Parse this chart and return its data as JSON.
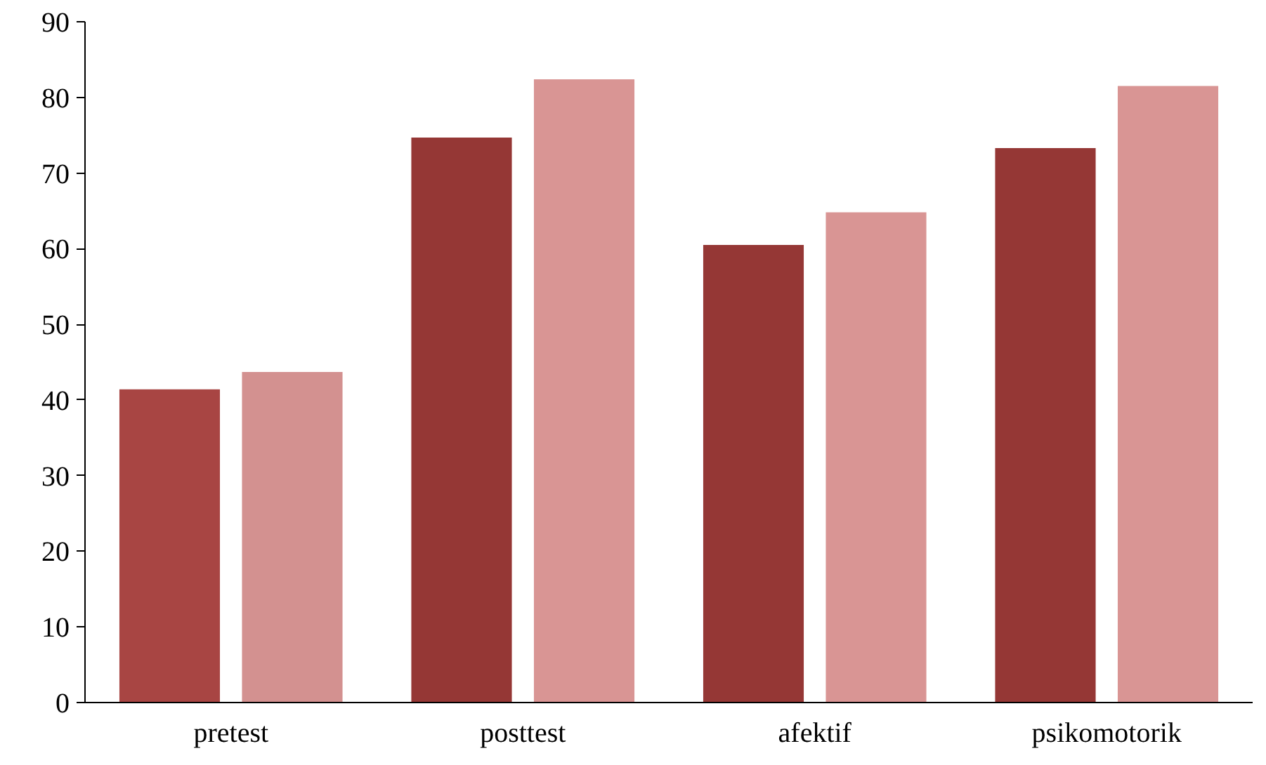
{
  "chart_data": {
    "type": "bar",
    "categories": [
      "pretest",
      "posttest",
      "afektif",
      "psikomotorik"
    ],
    "series": [
      {
        "colors": [
          "#a84543",
          "#953735",
          "#953735",
          "#953735"
        ],
        "values": [
          41.4,
          74.7,
          60.5,
          73.3
        ]
      },
      {
        "colors": [
          "#d39190",
          "#d99594",
          "#d99594",
          "#d99594"
        ],
        "values": [
          43.7,
          82.4,
          64.8,
          81.5
        ]
      }
    ],
    "ylim": [
      0,
      90
    ],
    "yticks": [
      0,
      10,
      20,
      30,
      40,
      50,
      60,
      70,
      80,
      90
    ],
    "grid": false
  }
}
